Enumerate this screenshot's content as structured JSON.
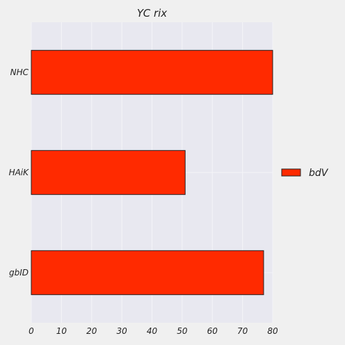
{
  "chart_data": {
    "type": "bar",
    "orientation": "horizontal",
    "title": "YC  rix",
    "xlabel": "",
    "ylabel": "",
    "categories": [
      "gbID",
      "HAiK",
      "NHC"
    ],
    "series": [
      {
        "name": "bdV",
        "values": [
          77,
          51,
          80
        ],
        "color": "#ff2a00"
      }
    ],
    "xlim": [
      0,
      80
    ],
    "xticks": [
      0,
      10,
      20,
      30,
      40,
      50,
      60,
      70,
      80
    ],
    "grid": true,
    "legend_position": "right",
    "plot_background": "#e8e8f0",
    "grid_color": "#f4f4f8",
    "bar_edge_color": "#222222"
  }
}
